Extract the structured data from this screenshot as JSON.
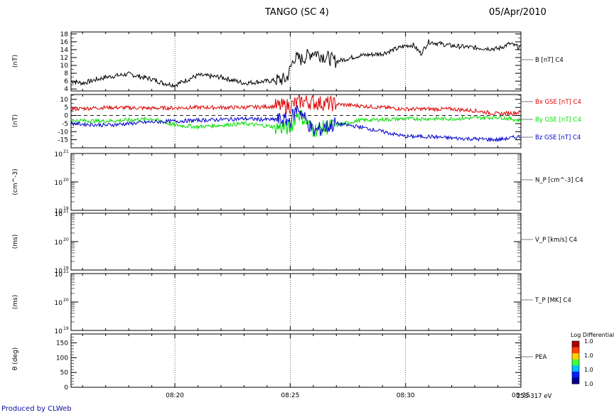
{
  "header": {
    "title": "TANGO (SC 4)",
    "date": "05/Apr/2010"
  },
  "footer": {
    "credit": "Produced by CLWeb"
  },
  "colorbar": {
    "title": "Log Differential",
    "labels": [
      "1.0",
      "1.0",
      "1.0",
      "1.0"
    ],
    "colors": [
      "#aa0000",
      "#ff4000",
      "#ffd000",
      "#40ff40",
      "#00c0ff",
      "#0020ff",
      "#000090"
    ]
  },
  "time_axis": {
    "ticks": [
      "08:20",
      "08:25",
      "08:30",
      "08:35"
    ]
  },
  "colors": {
    "black": "#000000",
    "red": "#dd0000",
    "green": "#00dd00",
    "blue": "#0000cc"
  },
  "chart_data": [
    {
      "type": "line",
      "ylabel": "(nT)",
      "ylim": [
        3.5,
        18.5
      ],
      "yticks": [
        4,
        6,
        8,
        10,
        12,
        14,
        16,
        18
      ],
      "series": [
        {
          "name": "B [nT] C4",
          "color": "#000000",
          "x": [
            "08:15:30",
            "08:16",
            "08:17",
            "08:18",
            "08:19",
            "08:19:30",
            "08:20",
            "08:21",
            "08:22",
            "08:23",
            "08:24",
            "08:24:50",
            "08:25",
            "08:25:10",
            "08:25:30",
            "08:26",
            "08:27",
            "08:28",
            "08:29",
            "08:30",
            "08:30:20",
            "08:30:40",
            "08:31",
            "08:32",
            "08:33",
            "08:34",
            "08:34:30",
            "08:35"
          ],
          "y": [
            6,
            5.5,
            7,
            7.8,
            6.5,
            5.5,
            5,
            7.5,
            7,
            5.5,
            6,
            6.5,
            9,
            12,
            11.5,
            13.5,
            11,
            12.5,
            13,
            15,
            15.2,
            13,
            16,
            15,
            14.5,
            14.2,
            15.5,
            14.5
          ]
        }
      ]
    },
    {
      "type": "line",
      "ylabel": "(nT)",
      "ylim": [
        -20,
        13
      ],
      "yticks": [
        -15,
        -10,
        -5,
        0,
        5,
        10
      ],
      "series": [
        {
          "name": "Bx GSE [nT] C4",
          "color": "#dd0000",
          "x": [
            "08:15:30",
            "08:17",
            "08:19",
            "08:21",
            "08:23",
            "08:25",
            "08:25:30",
            "08:26",
            "08:28",
            "08:30",
            "08:32",
            "08:33",
            "08:34",
            "08:35"
          ],
          "y": [
            4,
            5,
            4.5,
            5,
            5,
            6,
            9,
            8,
            6,
            4,
            4,
            3,
            1,
            2
          ]
        },
        {
          "name": "By GSE [nT] C4",
          "color": "#00dd00",
          "x": [
            "08:15:30",
            "08:17",
            "08:19",
            "08:20",
            "08:21",
            "08:23",
            "08:25",
            "08:25:20",
            "08:26",
            "08:27",
            "08:28",
            "08:30",
            "08:32",
            "08:34",
            "08:35"
          ],
          "y": [
            -3,
            -3.5,
            -2,
            -6,
            -7,
            -5,
            -8,
            2,
            -9,
            -6,
            -3,
            -2,
            -2,
            -1,
            -3
          ]
        },
        {
          "name": "Bz GSE [nT] C4",
          "color": "#0000cc",
          "x": [
            "08:15:30",
            "08:17",
            "08:19",
            "08:21",
            "08:23",
            "08:25",
            "08:25:20",
            "08:26",
            "08:27",
            "08:28",
            "08:29",
            "08:30",
            "08:31",
            "08:32",
            "08:34",
            "08:35"
          ],
          "y": [
            -5,
            -6,
            -4,
            -3,
            -2,
            -3,
            5,
            -10,
            -5,
            -7,
            -10,
            -13,
            -13,
            -14,
            -15,
            -13
          ]
        }
      ]
    },
    {
      "type": "line",
      "ylabel": "(cm^-3)",
      "ylim_log": [
        19,
        21
      ],
      "series": [
        {
          "name": "N_P [cm^-3] C4",
          "x": [],
          "y": []
        }
      ]
    },
    {
      "type": "line",
      "ylabel": "(ms)",
      "ylim_log": [
        19,
        21
      ],
      "series": [
        {
          "name": "V_P [km/s] C4",
          "x": [],
          "y": []
        }
      ]
    },
    {
      "type": "line",
      "ylabel": "(ms)",
      "ylim_log": [
        19,
        21
      ],
      "series": [
        {
          "name": "T_P [MK] C4",
          "x": [],
          "y": []
        }
      ]
    },
    {
      "type": "heatmap",
      "ylabel": "θ (deg)",
      "ylim": [
        0,
        180
      ],
      "yticks": [
        0,
        50,
        100,
        150
      ],
      "series": [
        {
          "name": "PEA",
          "x": [],
          "y": []
        }
      ],
      "energy_label": "253-317 eV"
    }
  ]
}
